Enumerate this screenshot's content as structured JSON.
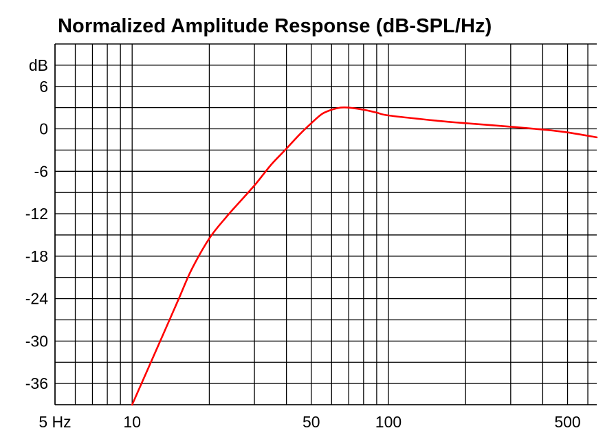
{
  "chart_data": {
    "type": "line",
    "title": "Normalized Amplitude Response (dB-SPL/Hz)",
    "xlabel": "",
    "ylabel": "dB",
    "x_scale": "log",
    "xlim": [
      5,
      650
    ],
    "ylim": [
      -39,
      12
    ],
    "grid": true,
    "y_ticks": [
      -36,
      -30,
      -24,
      -18,
      -12,
      -6,
      0,
      6
    ],
    "y_tick_labels": [
      "-36",
      "-30",
      "-24",
      "-18",
      "-12",
      "-6",
      "0",
      "6"
    ],
    "y_unit_label": "dB",
    "x_ticks": [
      5,
      10,
      50,
      100,
      500
    ],
    "x_tick_labels": [
      "5 Hz",
      "10",
      "50",
      "100",
      "500"
    ],
    "x_minor_grid": [
      6,
      7,
      8,
      9,
      20,
      30,
      40,
      60,
      70,
      80,
      90,
      200,
      300,
      400,
      600
    ],
    "series": [
      {
        "color": "#ff0000",
        "x": [
          10,
          12,
          15,
          17,
          20,
          23,
          25,
          30,
          35,
          40,
          45,
          50,
          55,
          60,
          65,
          70,
          80,
          90,
          100,
          150,
          200,
          300,
          400,
          500,
          650
        ],
        "y": [
          -39,
          -32.5,
          -24.5,
          -20,
          -15.5,
          -12.7,
          -11.2,
          -8,
          -5,
          -2.8,
          -0.8,
          0.8,
          2.1,
          2.7,
          3.0,
          3.0,
          2.7,
          2.3,
          1.9,
          1.2,
          0.8,
          0.3,
          -0.1,
          -0.5,
          -1.2
        ]
      }
    ]
  }
}
